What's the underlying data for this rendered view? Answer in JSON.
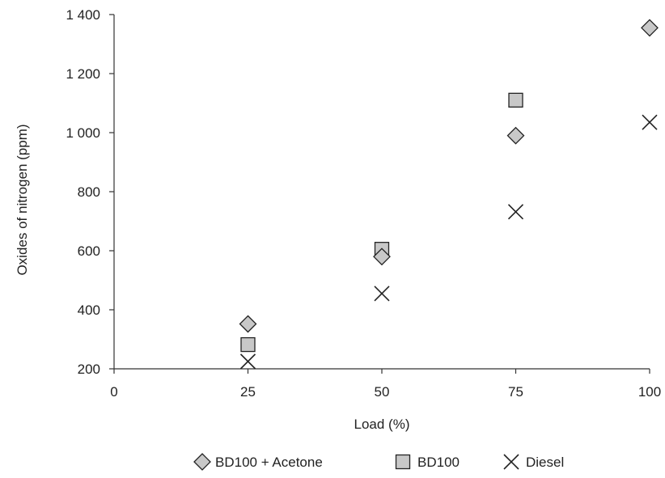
{
  "chart_data": {
    "type": "scatter",
    "title": "",
    "xlabel": "Load (%)",
    "ylabel": "Oxides of nitrogen (ppm)",
    "xlim": [
      0,
      100
    ],
    "ylim": [
      200,
      1400
    ],
    "x_ticks": [
      0,
      25,
      50,
      75,
      100
    ],
    "x_tick_labels": [
      "0",
      "25",
      "50",
      "75",
      "100"
    ],
    "y_ticks": [
      200,
      400,
      600,
      800,
      1000,
      1200,
      1400
    ],
    "y_tick_labels": [
      "200",
      "400",
      "600",
      "800",
      "1 000",
      "1 200",
      "1 400"
    ],
    "grid": false,
    "legend_position": "bottom",
    "series": [
      {
        "name": "BD100 + Acetone",
        "marker": "diamond",
        "color": "#c8c8c8",
        "x": [
          25,
          50,
          75,
          100
        ],
        "y": [
          352,
          580,
          990,
          1355
        ]
      },
      {
        "name": "BD100",
        "marker": "square",
        "color": "#c8c8c8",
        "x": [
          25,
          50,
          75
        ],
        "y": [
          282,
          605,
          1110
        ]
      },
      {
        "name": "Diesel",
        "marker": "x",
        "color": "#222222",
        "x": [
          25,
          50,
          75,
          100
        ],
        "y": [
          225,
          455,
          732,
          1035
        ]
      }
    ]
  }
}
